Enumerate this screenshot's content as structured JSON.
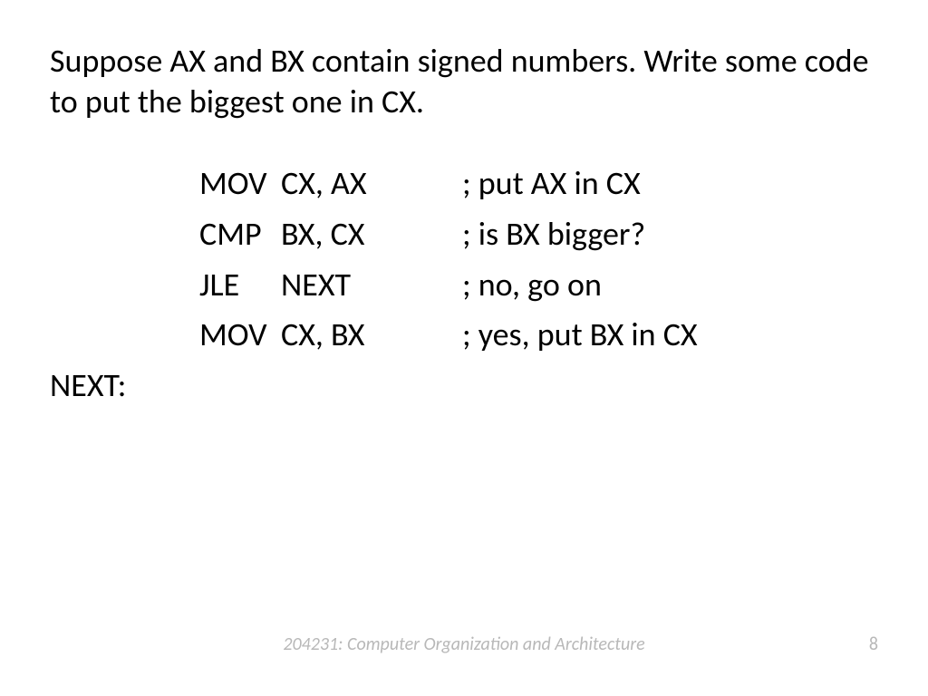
{
  "heading": "Suppose AX and BX contain signed numbers. Write some code to put the biggest one in CX.",
  "code": {
    "rows": [
      {
        "label": "",
        "instr": "MOV",
        "args": "CX, AX",
        "comment": "; put AX in CX"
      },
      {
        "label": "",
        "instr": "CMP",
        "args": "BX, CX",
        "comment": "; is BX bigger?"
      },
      {
        "label": "",
        "instr": "JLE",
        "args": "NEXT",
        "comment": "; no, go on"
      },
      {
        "label": "",
        "instr": "MOV",
        "args": "CX, BX",
        "comment": "; yes, put BX in CX"
      },
      {
        "label": "NEXT:",
        "instr": "",
        "args": "",
        "comment": ""
      }
    ]
  },
  "footer": "204231: Computer Organization and Architecture",
  "page": "8",
  "style": {
    "bg": "#ffffff",
    "text_color": "#000000",
    "footer_color": "#b8b8b8",
    "heading_fontsize": 36,
    "code_fontsize": 36,
    "footer_fontsize": 20
  }
}
